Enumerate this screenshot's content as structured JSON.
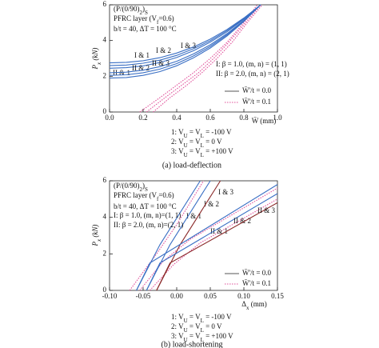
{
  "chart_data": [
    {
      "type": "line",
      "xlim": [
        0,
        1.0
      ],
      "xticks": [
        {
          "value": 0,
          "label": "0.0"
        },
        0.2,
        0.4,
        0.6,
        0.8,
        {
          "value": 1.0,
          "label": "1.0"
        }
      ],
      "ylim": [
        0,
        6
      ],
      "yticks": [
        0,
        2,
        4,
        6
      ],
      "xlabel": "W̄ (mm)",
      "ylabel": [
        "P",
        "x",
        " (kN)"
      ],
      "annotations": [
        [
          "(P/(0/90)",
          "2",
          ")",
          "S"
        ],
        [
          "PFRC layer (V",
          "f",
          "=0.6)"
        ],
        "b/t = 40, ΔT = 100 °C",
        "I: β = 1.0, (m, n) = (1, 1)",
        "II: β = 2.0, (m, n) = (2, 1)"
      ],
      "x": [
        0,
        0.1,
        0.2,
        0.3,
        0.4,
        0.5,
        0.6,
        0.7,
        0.8,
        0.9
      ],
      "series": [
        {
          "name": "I & 1",
          "color": "#3a6fc4",
          "values": [
            2.45,
            2.48,
            2.58,
            2.77,
            3.05,
            3.43,
            3.91,
            4.49,
            5.19,
            6.0
          ]
        },
        {
          "name": "I & 2",
          "color": "#3a6fc4",
          "values": [
            2.6,
            2.63,
            2.73,
            2.9,
            3.17,
            3.54,
            3.99,
            4.56,
            5.22,
            6.0
          ]
        },
        {
          "name": "I & 3",
          "color": "#3a6fc4",
          "values": [
            2.75,
            2.78,
            2.87,
            3.04,
            3.3,
            3.64,
            4.08,
            4.62,
            5.26,
            6.0
          ]
        },
        {
          "name": "II & 1",
          "color": "#3a6fc4",
          "values": [
            1.9,
            1.93,
            2.05,
            2.26,
            2.59,
            3.03,
            3.58,
            4.26,
            5.07,
            6.0
          ]
        },
        {
          "name": "II & 2",
          "color": "#3a6fc4",
          "values": [
            2.05,
            2.08,
            2.2,
            2.4,
            2.71,
            3.14,
            3.67,
            4.32,
            5.1,
            6.0
          ]
        },
        {
          "name": "II & 3",
          "color": "#3a6fc4",
          "values": [
            2.2,
            2.23,
            2.34,
            2.54,
            2.84,
            3.25,
            3.76,
            4.39,
            5.13,
            6.0
          ]
        }
      ],
      "imperfect_series": [
        {
          "color": "#e0509a",
          "x": [
            0.18,
            0.3,
            0.4,
            0.5,
            0.6,
            0.7,
            0.8,
            0.88
          ],
          "values": [
            0,
            0.8,
            1.5,
            2.2,
            3.0,
            3.9,
            5.0,
            6.0
          ]
        },
        {
          "color": "#e0509a",
          "x": [
            0.22,
            0.33,
            0.43,
            0.53,
            0.62,
            0.71,
            0.81,
            0.9
          ],
          "values": [
            0,
            0.8,
            1.5,
            2.2,
            3.0,
            3.9,
            5.0,
            6.0
          ]
        },
        {
          "color": "#e0509a",
          "x": [
            0.26,
            0.36,
            0.46,
            0.55,
            0.64,
            0.73,
            0.82,
            0.91
          ],
          "values": [
            0,
            0.8,
            1.5,
            2.2,
            3.0,
            3.9,
            5.0,
            6.0
          ]
        }
      ],
      "legend": [
        {
          "label": "W̄'/t = 0.0",
          "color": "#555555",
          "dash": false
        },
        {
          "label": "W̄'/t = 0.1",
          "color": "#e0509a",
          "dash": true
        }
      ],
      "notes": [
        [
          "1: V",
          "U",
          " = V",
          "L",
          " = -100 V"
        ],
        [
          "2: V",
          "U",
          " = V",
          "L",
          " = 0 V"
        ],
        [
          "3: V",
          "U",
          " = V",
          "L",
          " = +100 V"
        ]
      ],
      "caption": "(a) load-deflection"
    },
    {
      "type": "line",
      "xlim": [
        -0.1,
        0.15
      ],
      "xticks": [
        {
          "value": -0.1,
          "label": "-0.10"
        },
        -0.05,
        {
          "value": 0,
          "label": "0.00"
        },
        0.05,
        {
          "value": 0.1,
          "label": "0.10"
        },
        0.15
      ],
      "ylim": [
        0,
        6
      ],
      "yticks": [
        0,
        2,
        4,
        6
      ],
      "xlabel": [
        "Δ",
        "x",
        " (mm)"
      ],
      "ylabel": [
        "P",
        "x",
        " (kN)"
      ],
      "annotations": [
        [
          "(P/(0/90)",
          "2",
          ")",
          "S"
        ],
        [
          "PFRC layer (V",
          "f",
          "=0.6)"
        ],
        "b/t = 40, ΔT = 100 °C",
        "I: β = 1.0, (m, n)=(1, 1)",
        "II: β = 2.0, (m, n)=(2, 1)"
      ],
      "series": [
        {
          "name": "I & 1",
          "color": "#3a6fc4",
          "x": [
            -0.06,
            -0.025,
            0.035
          ],
          "values": [
            0,
            2.5,
            6
          ]
        },
        {
          "name": "I & 2",
          "color": "#3a6fc4",
          "x": [
            -0.045,
            -0.01,
            0.05
          ],
          "values": [
            0,
            2.5,
            6
          ]
        },
        {
          "name": "I & 3",
          "color": "#8b2a2a",
          "x": [
            -0.03,
            0.005,
            0.065
          ],
          "values": [
            0,
            2.5,
            6
          ]
        },
        {
          "name": "II & 1",
          "color": "#3a6fc4",
          "x": [
            -0.06,
            -0.04,
            0.15
          ],
          "values": [
            0,
            1.5,
            5.8
          ]
        },
        {
          "name": "II & 2",
          "color": "#3a6fc4",
          "x": [
            -0.045,
            -0.025,
            0.15
          ],
          "values": [
            0,
            1.5,
            5.3
          ]
        },
        {
          "name": "II & 3",
          "color": "#8b2a2a",
          "x": [
            -0.03,
            -0.01,
            0.15
          ],
          "values": [
            0,
            1.5,
            4.8
          ]
        }
      ],
      "imperfect_series": [
        {
          "color": "#e0509a",
          "x": [
            -0.07,
            -0.03,
            0.0,
            0.04
          ],
          "values": [
            0,
            2.0,
            3.6,
            6.0
          ]
        },
        {
          "color": "#e0509a",
          "x": [
            -0.055,
            -0.02,
            0.02,
            0.15
          ],
          "values": [
            0,
            1.6,
            2.8,
            5.6
          ]
        },
        {
          "color": "#e0509a",
          "x": [
            -0.04,
            -0.005,
            0.035,
            0.15
          ],
          "values": [
            0,
            1.4,
            2.6,
            5.0
          ]
        }
      ],
      "legend": [
        {
          "label": "W̄'/t = 0.0",
          "color": "#555555",
          "dash": false
        },
        {
          "label": "W̄'/t = 0.1",
          "color": "#e0509a",
          "dash": true
        }
      ],
      "notes": [
        [
          "1: V",
          "U",
          " = V",
          "L",
          " = -100 V"
        ],
        [
          "2: V",
          "U",
          " = V",
          "L",
          " = 0 V"
        ],
        [
          "3: V",
          "U",
          " = V",
          "L",
          " = +100 V"
        ]
      ],
      "caption": "(b) load-shortening"
    }
  ]
}
